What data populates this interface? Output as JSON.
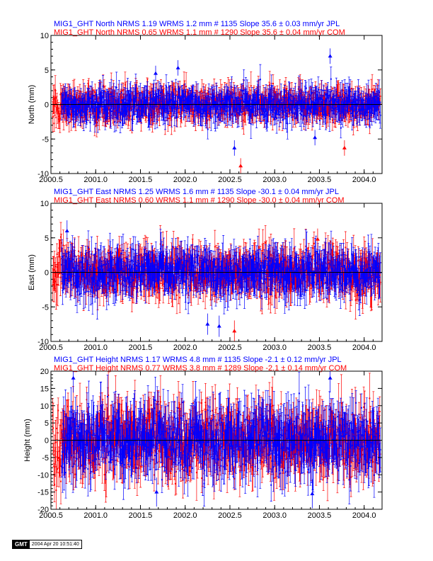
{
  "stamp": {
    "logo": "GMT",
    "timestamp": "2004 Apr 20 10:51:40"
  },
  "colors": {
    "jpl": "#0000ff",
    "com": "#ff0000",
    "axis": "#000000"
  },
  "chart_data": [
    {
      "type": "scatter",
      "component": "north",
      "ylabel": "North (mm)",
      "xlim": [
        2000.5,
        2004.2
      ],
      "ylim": [
        -10,
        10
      ],
      "xticks": [
        "2000.5",
        "2001.0",
        "2001.5",
        "2002.0",
        "2002.5",
        "2003.0",
        "2003.5",
        "2004.0"
      ],
      "xtick_values": [
        2000.5,
        2001.0,
        2001.5,
        2002.0,
        2002.5,
        2003.0,
        2003.5,
        2004.0
      ],
      "yticks": [
        "-10",
        "-5",
        "0",
        "5",
        "10"
      ],
      "ytick_values": [
        -10,
        -5,
        0,
        5,
        10
      ],
      "series": [
        {
          "name": "MIG1_GHT North NRMS 1.19 WRMS  1.2 mm # 1135 Slope   35.6 ±  0.03 mm/yr JPL",
          "color": "#0000ff",
          "nrms": 1.19,
          "wrms_mm": 1.2,
          "count": 1135,
          "slope_mm_yr": 35.6,
          "slope_sigma": 0.03,
          "x_start": 2000.62,
          "x_end": 2004.18
        },
        {
          "name": "MIG1_GHT North NRMS 0.65 WRMS  1.1 mm # 1290 Slope   35.6 ±  0.04 mm/yr COM",
          "color": "#ff0000",
          "nrms": 0.65,
          "wrms_mm": 1.1,
          "count": 1290,
          "slope_mm_yr": 35.6,
          "slope_sigma": 0.04,
          "x_start": 2000.52,
          "x_end": 2004.18
        }
      ],
      "spread": 1.2,
      "errbar": 1.6,
      "outliers": [
        {
          "x": 2001.67,
          "y": 4.5,
          "color": "#0000ff"
        },
        {
          "x": 2001.92,
          "y": 5.3,
          "color": "#0000ff"
        },
        {
          "x": 2002.55,
          "y": -6.3,
          "color": "#0000ff"
        },
        {
          "x": 2002.62,
          "y": -8.9,
          "color": "#ff0000"
        },
        {
          "x": 2003.62,
          "y": 7.0,
          "color": "#0000ff"
        },
        {
          "x": 2003.45,
          "y": -4.8,
          "color": "#0000ff"
        },
        {
          "x": 2003.78,
          "y": -6.3,
          "color": "#ff0000"
        }
      ]
    },
    {
      "type": "scatter",
      "component": "east",
      "ylabel": "East (mm)",
      "xlim": [
        2000.5,
        2004.2
      ],
      "ylim": [
        -10,
        10
      ],
      "xticks": [
        "2000.5",
        "2001.0",
        "2001.5",
        "2002.0",
        "2002.5",
        "2003.0",
        "2003.5",
        "2004.0"
      ],
      "xtick_values": [
        2000.5,
        2001.0,
        2001.5,
        2002.0,
        2002.5,
        2003.0,
        2003.5,
        2004.0
      ],
      "yticks": [
        "-10",
        "-5",
        "0",
        "5",
        "10"
      ],
      "ytick_values": [
        -10,
        -5,
        0,
        5,
        10
      ],
      "series": [
        {
          "name": "MIG1_GHT East NRMS 1.25 WRMS  1.6 mm # 1135 Slope  -30.1 ±  0.04 mm/yr JPL",
          "color": "#0000ff",
          "nrms": 1.25,
          "wrms_mm": 1.6,
          "count": 1135,
          "slope_mm_yr": -30.1,
          "slope_sigma": 0.04,
          "x_start": 2000.62,
          "x_end": 2004.18
        },
        {
          "name": "MIG1_GHT East NRMS 0.60 WRMS  1.1 mm # 1290 Slope  -30.0 ±  0.04 mm/yr COM",
          "color": "#ff0000",
          "nrms": 0.6,
          "wrms_mm": 1.1,
          "count": 1290,
          "slope_mm_yr": -30.0,
          "slope_sigma": 0.04,
          "x_start": 2000.52,
          "x_end": 2004.18
        }
      ],
      "spread": 1.6,
      "errbar": 2.2,
      "outliers": [
        {
          "x": 2000.68,
          "y": 6.0,
          "color": "#0000ff"
        },
        {
          "x": 2002.25,
          "y": -7.5,
          "color": "#0000ff"
        },
        {
          "x": 2002.38,
          "y": -7.8,
          "color": "#0000ff"
        },
        {
          "x": 2002.55,
          "y": -8.5,
          "color": "#ff0000"
        },
        {
          "x": 2003.48,
          "y": 4.8,
          "color": "#ff0000"
        }
      ]
    },
    {
      "type": "scatter",
      "component": "height",
      "ylabel": "Height (mm)",
      "xlim": [
        2000.5,
        2004.2
      ],
      "ylim": [
        -20,
        20
      ],
      "xticks": [
        "2000.5",
        "2001.0",
        "2001.5",
        "2002.0",
        "2002.5",
        "2003.0",
        "2003.5",
        "2004.0"
      ],
      "xtick_values": [
        2000.5,
        2001.0,
        2001.5,
        2002.0,
        2002.5,
        2003.0,
        2003.5,
        2004.0
      ],
      "yticks": [
        "-20",
        "-15",
        "-10",
        "-5",
        "0",
        "5",
        "10",
        "15",
        "20"
      ],
      "ytick_values": [
        -20,
        -15,
        -10,
        -5,
        0,
        5,
        10,
        15,
        20
      ],
      "series": [
        {
          "name": "MIG1_GHT Height NRMS 1.17 WRMS  4.8 mm # 1135 Slope   -2.1 ±  0.12 mm/yr JPL",
          "color": "#0000ff",
          "nrms": 1.17,
          "wrms_mm": 4.8,
          "count": 1135,
          "slope_mm_yr": -2.1,
          "slope_sigma": 0.12,
          "x_start": 2000.62,
          "x_end": 2004.18
        },
        {
          "name": "MIG1_GHT Height NRMS 0.77 WRMS  3.8 mm # 1289 Slope   -2.1 ±  0.14 mm/yr COM",
          "color": "#ff0000",
          "nrms": 0.77,
          "wrms_mm": 3.8,
          "count": 1289,
          "slope_mm_yr": -2.1,
          "slope_sigma": 0.14,
          "x_start": 2000.52,
          "x_end": 2004.18
        }
      ],
      "spread": 4.8,
      "errbar": 6.0,
      "outliers": [
        {
          "x": 2000.75,
          "y": 18.0,
          "color": "#0000ff"
        },
        {
          "x": 2001.68,
          "y": -15.0,
          "color": "#0000ff"
        },
        {
          "x": 2003.62,
          "y": 18.0,
          "color": "#0000ff"
        },
        {
          "x": 2003.42,
          "y": -15.5,
          "color": "#0000ff"
        }
      ]
    }
  ]
}
